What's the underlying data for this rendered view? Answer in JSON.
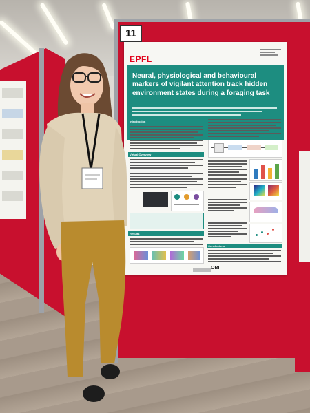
{
  "booth_number": "11",
  "poster": {
    "institution_logo": "EPFL",
    "title": "Neural, physiological and behavioural markers of vigilant attention track hidden environment states during a foraging task",
    "section_1": "Introduction",
    "section_2": "Virtual Overview",
    "section_3": "Results",
    "section_4": "Conclusions",
    "footer_logo": "OBI"
  },
  "colors": {
    "board_red": "#c8102e",
    "poster_teal": "#1d8d80",
    "sweater": "#e1d3b8",
    "trousers": "#b98b2e",
    "hair": "#6b4a32"
  }
}
